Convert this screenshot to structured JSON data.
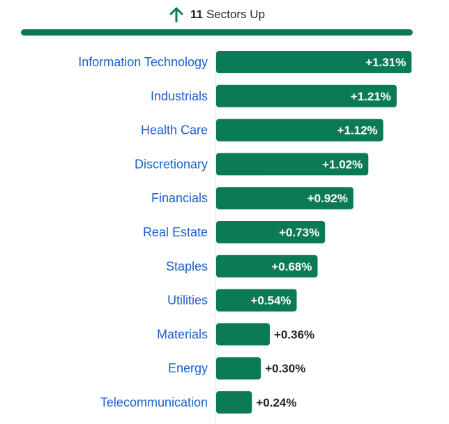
{
  "header": {
    "count": "11",
    "label": "Sectors Up",
    "icon": "arrow-up-icon"
  },
  "colors": {
    "bar": "#0b7a57",
    "category_text": "#1b5fc9",
    "value_inside": "#ffffff",
    "value_outside": "#1f2328"
  },
  "chart_data": {
    "type": "bar",
    "orientation": "horizontal",
    "categories": [
      "Information Technology",
      "Industrials",
      "Health Care",
      "Discretionary",
      "Financials",
      "Real Estate",
      "Staples",
      "Utilities",
      "Materials",
      "Energy",
      "Telecommunication"
    ],
    "values": [
      1.31,
      1.21,
      1.12,
      1.02,
      0.92,
      0.73,
      0.68,
      0.54,
      0.36,
      0.3,
      0.24
    ],
    "value_labels": [
      "+1.31%",
      "+1.21%",
      "+1.12%",
      "+1.02%",
      "+0.92%",
      "+0.73%",
      "+0.68%",
      "+0.54%",
      "+0.36%",
      "+0.30%",
      "+0.24%"
    ],
    "title": "",
    "xlabel": "",
    "ylabel": "",
    "grid": false,
    "legend": "none"
  }
}
